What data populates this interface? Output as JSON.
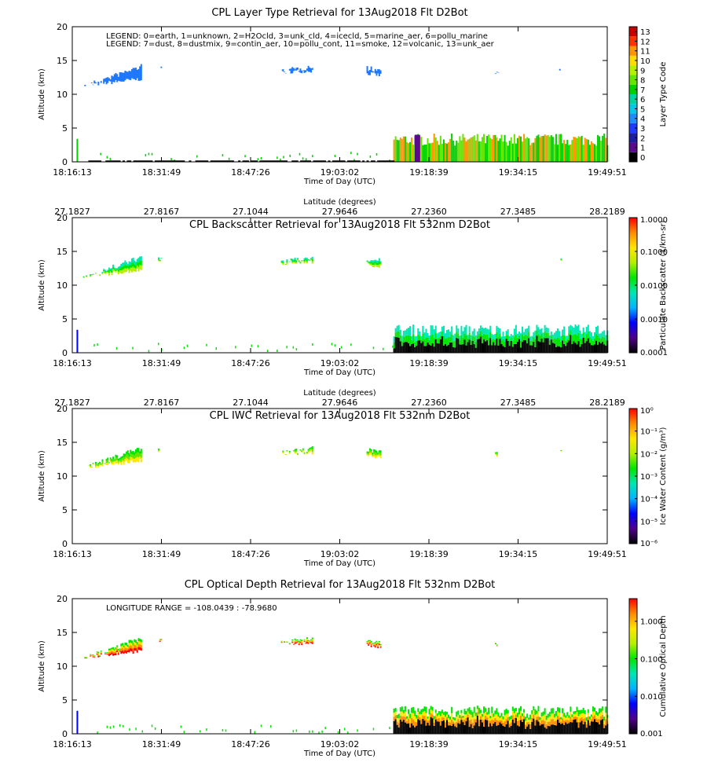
{
  "chart_data": [
    {
      "type": "curtain",
      "title": "CPL Layer Type Retrieval for 13Aug2018 Flt D2Bot",
      "title_inside": false,
      "xlabel": "Time of Day (UTC)",
      "ylabel": "Altitude (km)",
      "categories": [
        "18:16:13",
        "18:31:49",
        "18:47:26",
        "19:03:02",
        "19:18:39",
        "19:34:15",
        "19:49:51"
      ],
      "ylim": [
        0,
        20
      ],
      "yticks": [
        0,
        5,
        10,
        15,
        20
      ],
      "annotations": [
        "LEGEND: 0=earth, 1=unknown, 2=H2Ocld, 3=unk_cld, 4=icecld, 5=marine_aer, 6=pollu_marine",
        "LEGEND: 7=dust, 8=dustmix, 9=contin_aer, 10=pollu_cont, 11=smoke, 12=volcanic, 13=unk_aer"
      ],
      "colorbar": {
        "label": "Layer Type Code",
        "discrete": true,
        "lim": [
          -0.5,
          13.5
        ],
        "ticks": [
          0,
          1,
          2,
          3,
          4,
          5,
          6,
          7,
          8,
          9,
          10,
          11,
          12,
          13
        ],
        "colors": [
          "#000000",
          "#5a0a8c",
          "#1e1ea0",
          "#1e3cff",
          "#1e8cff",
          "#00c8e6",
          "#00d2a0",
          "#00d200",
          "#64e600",
          "#b4f000",
          "#ffdc00",
          "#ff9600",
          "#ff3200",
          "#c80000"
        ]
      }
    },
    {
      "type": "curtain",
      "title": "CPL Backscatter Retrieval for 13Aug2018 Flt 532nm D2Bot",
      "title_inside": true,
      "xlabel": "Time of Day (UTC)",
      "ylabel": "Altitude (km)",
      "x2label": "Latitude (degrees)",
      "x2_categories": [
        "27.1827",
        "27.8167",
        "27.1044",
        "27.9646",
        "27.2360",
        "27.3485",
        "28.2189"
      ],
      "categories": [
        "18:16:13",
        "18:31:49",
        "18:47:26",
        "19:03:02",
        "19:18:39",
        "19:34:15",
        "19:49:51"
      ],
      "ylim": [
        0,
        20
      ],
      "yticks": [
        0,
        5,
        10,
        15,
        20
      ],
      "colorbar": {
        "label": "Particulate Backscatter (1/km-sr)",
        "log": true,
        "lim": [
          0.0001,
          1
        ],
        "ticks": [
          0.0001,
          {
            "value": 0.001,
            "label": "0.0010"
          },
          {
            "value": 0.01,
            "label": "0.0100"
          },
          {
            "value": 0.1,
            "label": "0.1000"
          },
          {
            "value": 1,
            "label": "1.0000"
          }
        ],
        "colors": [
          "#000000",
          "#50008c",
          "#0000ff",
          "#00b4ff",
          "#00e6b4",
          "#00e600",
          "#b4f000",
          "#ffe600",
          "#ff8c00",
          "#ff0000"
        ]
      }
    },
    {
      "type": "curtain",
      "title": "CPL IWC Retrieval for 13Aug2018 Flt 532nm D2Bot",
      "title_inside": true,
      "xlabel": "Time of Day (UTC)",
      "ylabel": "Altitude (km)",
      "x2label": "Latitude (degrees)",
      "x2_categories": [
        "27.1827",
        "27.8167",
        "27.1044",
        "27.9646",
        "27.2360",
        "27.3485",
        "28.2189"
      ],
      "categories": [
        "18:16:13",
        "18:31:49",
        "18:47:26",
        "19:03:02",
        "19:18:39",
        "19:34:15",
        "19:49:51"
      ],
      "ylim": [
        0,
        20
      ],
      "yticks": [
        0,
        5,
        10,
        15,
        20
      ],
      "colorbar": {
        "label": "Ice Water Content (g/m³)",
        "log": true,
        "lim": [
          1e-06,
          1
        ],
        "ticks": [
          {
            "value": 1e-06,
            "label": "10⁻⁶"
          },
          {
            "value": 1e-05,
            "label": "10⁻⁵"
          },
          {
            "value": 0.0001,
            "label": "10⁻⁴"
          },
          {
            "value": 0.001,
            "label": "10⁻³"
          },
          {
            "value": 0.01,
            "label": "10⁻²"
          },
          {
            "value": 0.1,
            "label": "10⁻¹"
          },
          {
            "value": 1,
            "label": "10⁰"
          }
        ],
        "colors": [
          "#000000",
          "#50008c",
          "#0000ff",
          "#00b4ff",
          "#00e6b4",
          "#00e600",
          "#b4f000",
          "#ffe600",
          "#ff8c00",
          "#ff0000"
        ]
      }
    },
    {
      "type": "curtain",
      "title": "CPL Optical Depth Retrieval for 13Aug2018 Flt 532nm D2Bot",
      "title_inside": false,
      "xlabel": "Time of Day (UTC)",
      "ylabel": "Altitude (km)",
      "categories": [
        "18:16:13",
        "18:31:49",
        "18:47:26",
        "19:03:02",
        "19:18:39",
        "19:34:15",
        "19:49:51"
      ],
      "ylim": [
        0,
        20
      ],
      "yticks": [
        0,
        5,
        10,
        15,
        20
      ],
      "annotations": [
        "LONGITUDE RANGE =  -108.0439 :  -78.9680"
      ],
      "colorbar": {
        "label": "Cumulative Optical Depth",
        "log": true,
        "lim": [
          0.001,
          4
        ],
        "ticks": [
          0.001,
          {
            "value": 0.01,
            "label": "0.010"
          },
          {
            "value": 0.1,
            "label": "0.100"
          },
          {
            "value": 1,
            "label": "1.000"
          }
        ],
        "colors": [
          "#000000",
          "#50008c",
          "#0000ff",
          "#00b4ff",
          "#00e6b4",
          "#00e600",
          "#b4f000",
          "#ffe600",
          "#ff8c00",
          "#ff0000"
        ]
      }
    }
  ]
}
